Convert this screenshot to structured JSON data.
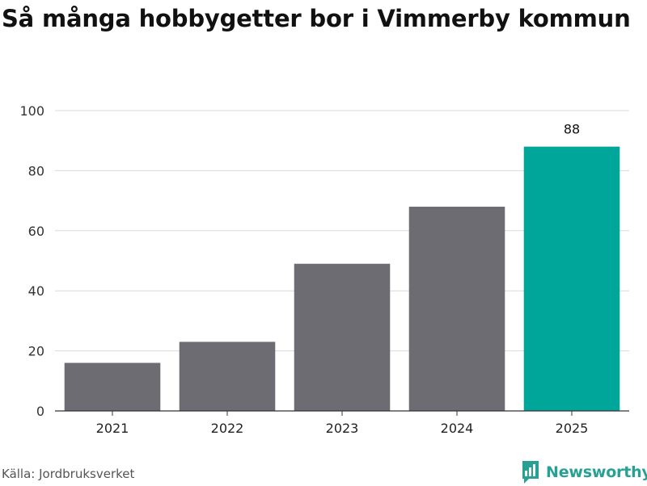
{
  "title": "Så många hobbygetter bor i Vimmerby kommun",
  "source": "Källa: Jordbruksverket",
  "brand": {
    "name": "Newsworthy",
    "icon": "newsworthy-chart-icon",
    "color": "#27a193"
  },
  "colors": {
    "bar": "#6d6c72",
    "highlight": "#00a69a",
    "grid": "#d9d9d9",
    "axis": "#333333"
  },
  "chart_data": {
    "type": "bar",
    "categories": [
      "2021",
      "2022",
      "2023",
      "2024",
      "2025"
    ],
    "values": [
      16,
      23,
      49,
      68,
      88
    ],
    "highlight_index": 4,
    "data_labels": [
      null,
      null,
      null,
      null,
      "88"
    ],
    "ylim": [
      0,
      100
    ],
    "yticks": [
      0,
      20,
      40,
      60,
      80,
      100
    ],
    "grid": true,
    "legend": "none"
  }
}
